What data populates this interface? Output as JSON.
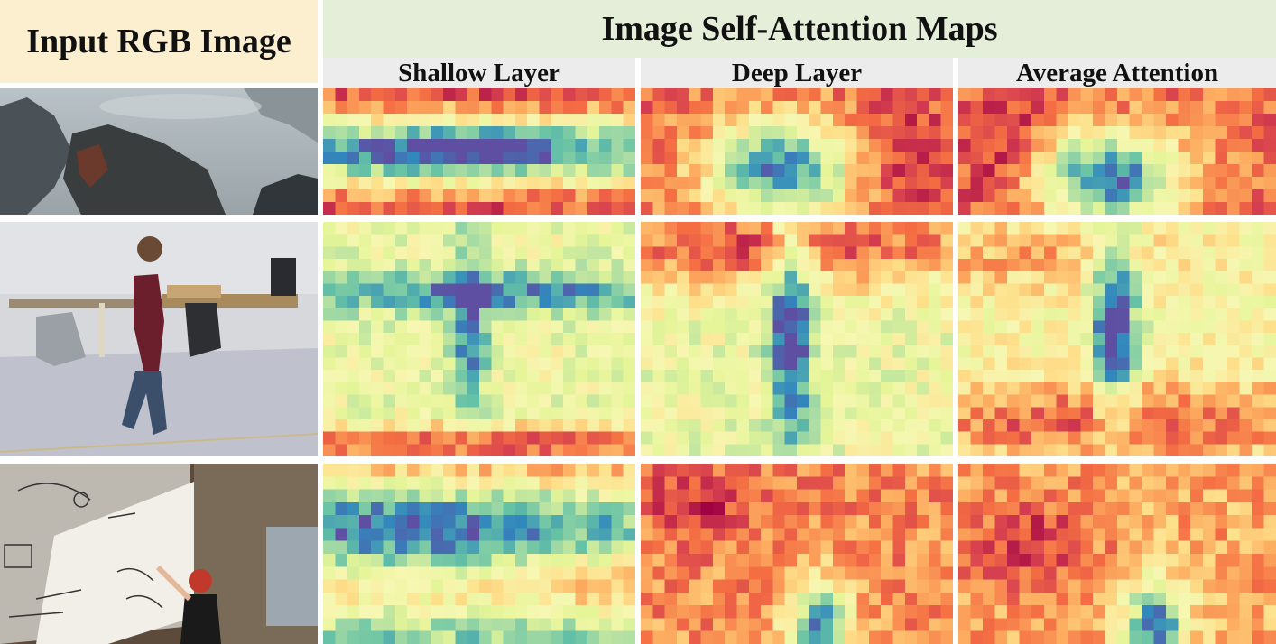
{
  "figure": {
    "input_label": "Input RGB Image",
    "maps_title": "Image Self-Attention Maps",
    "columns": [
      "Shallow Layer",
      "Deep Layer",
      "Average Attention"
    ],
    "rows": [
      "scene-cave-creature",
      "scene-office-person",
      "scene-whiteboard-person"
    ]
  },
  "colors": {
    "input_header_bg": "#fcefcf",
    "maps_header_bg": "#e4eed8",
    "subheader_bg": "#ececec",
    "colormap": [
      "#9e0142",
      "#d53e4f",
      "#f46d43",
      "#fdae61",
      "#fee08b",
      "#f6f7b2",
      "#e6f598",
      "#abdda4",
      "#66c2a5",
      "#3288bd",
      "#5e4fa2"
    ]
  }
}
